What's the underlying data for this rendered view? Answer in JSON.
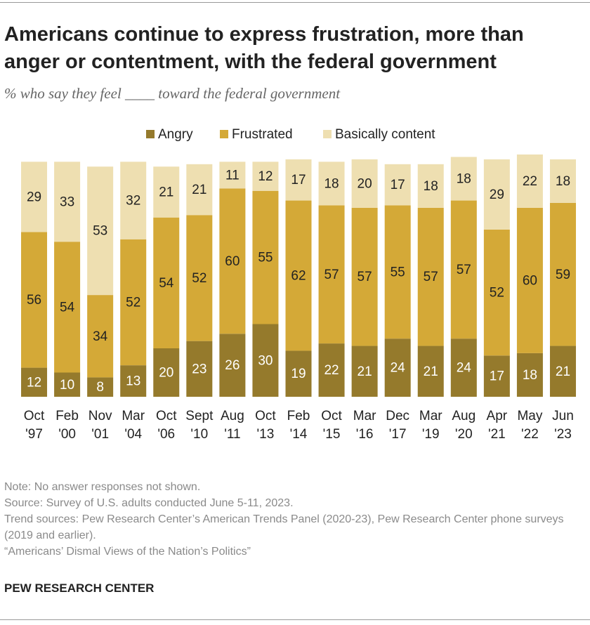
{
  "chart_data": {
    "type": "stacked_bar",
    "title": "Americans continue to express frustration, more than anger or contentment, with the federal government",
    "subtitle": "% who say they feel ____ toward the federal government",
    "categories": [
      "Oct '97",
      "Feb '00",
      "Nov '01",
      "Mar '04",
      "Oct '06",
      "Sept '10",
      "Aug '11",
      "Oct '13",
      "Feb '14",
      "Oct '15",
      "Mar '16",
      "Dec '17",
      "Mar '19",
      "Aug '20",
      "Apr '21",
      "May '22",
      "Jun '23"
    ],
    "series": [
      {
        "name": "Angry",
        "color": "#957a2c",
        "values": [
          12,
          10,
          8,
          13,
          20,
          23,
          26,
          30,
          19,
          22,
          21,
          24,
          21,
          24,
          17,
          18,
          21
        ]
      },
      {
        "name": "Frustrated",
        "color": "#d4a937",
        "values": [
          56,
          54,
          34,
          52,
          54,
          52,
          60,
          55,
          62,
          57,
          57,
          55,
          57,
          57,
          52,
          60,
          59
        ]
      },
      {
        "name": "Basically content",
        "color": "#eedfb1",
        "values": [
          29,
          33,
          53,
          32,
          21,
          21,
          11,
          12,
          17,
          18,
          20,
          17,
          18,
          18,
          29,
          22,
          18
        ]
      }
    ],
    "notes": [
      "Note: No answer responses not shown.",
      "Source: Survey of U.S. adults conducted June 5-11, 2023.",
      "Trend sources: Pew Research Center’s American Trends Panel (2020-23), Pew Research Center phone surveys (2019 and earlier).",
      "“Americans’ Dismal Views of the Nation’s Politics”"
    ],
    "source_org": "PEW RESEARCH CENTER"
  }
}
